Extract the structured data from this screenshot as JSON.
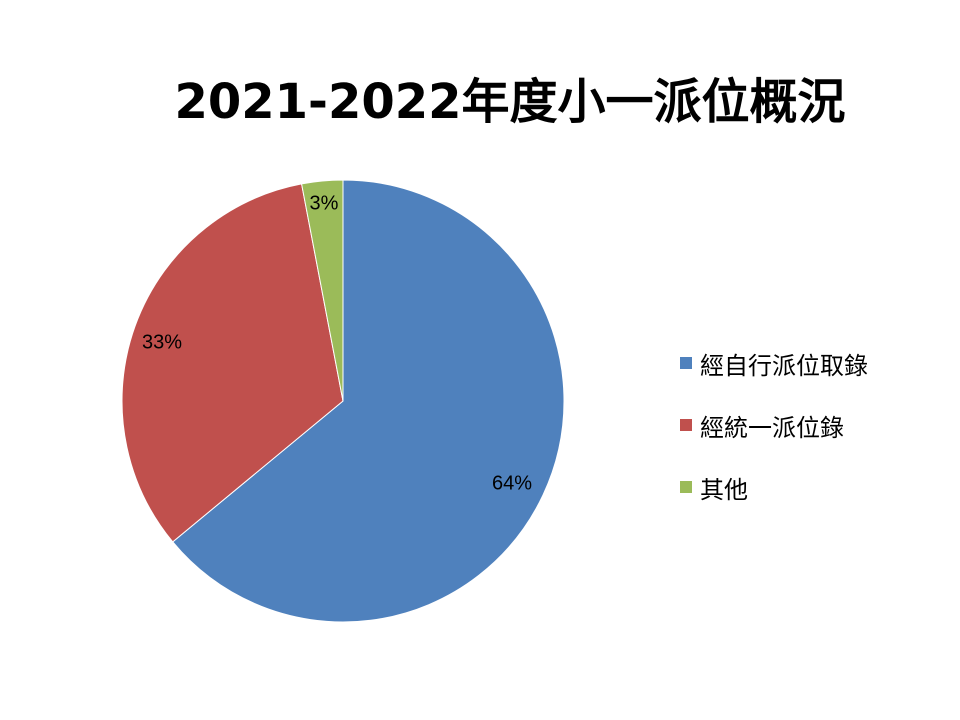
{
  "chart_data": {
    "type": "pie",
    "title": "2021-2022年度小一派位概況",
    "categories": [
      "經自行派位取錄",
      "經統一派位錄",
      "其他"
    ],
    "values": [
      64,
      33,
      3
    ],
    "data_labels": [
      "64%",
      "33%",
      "3%"
    ],
    "colors": [
      "#4f81bd",
      "#c0504d",
      "#9bbb59"
    ],
    "legend_position": "right"
  }
}
